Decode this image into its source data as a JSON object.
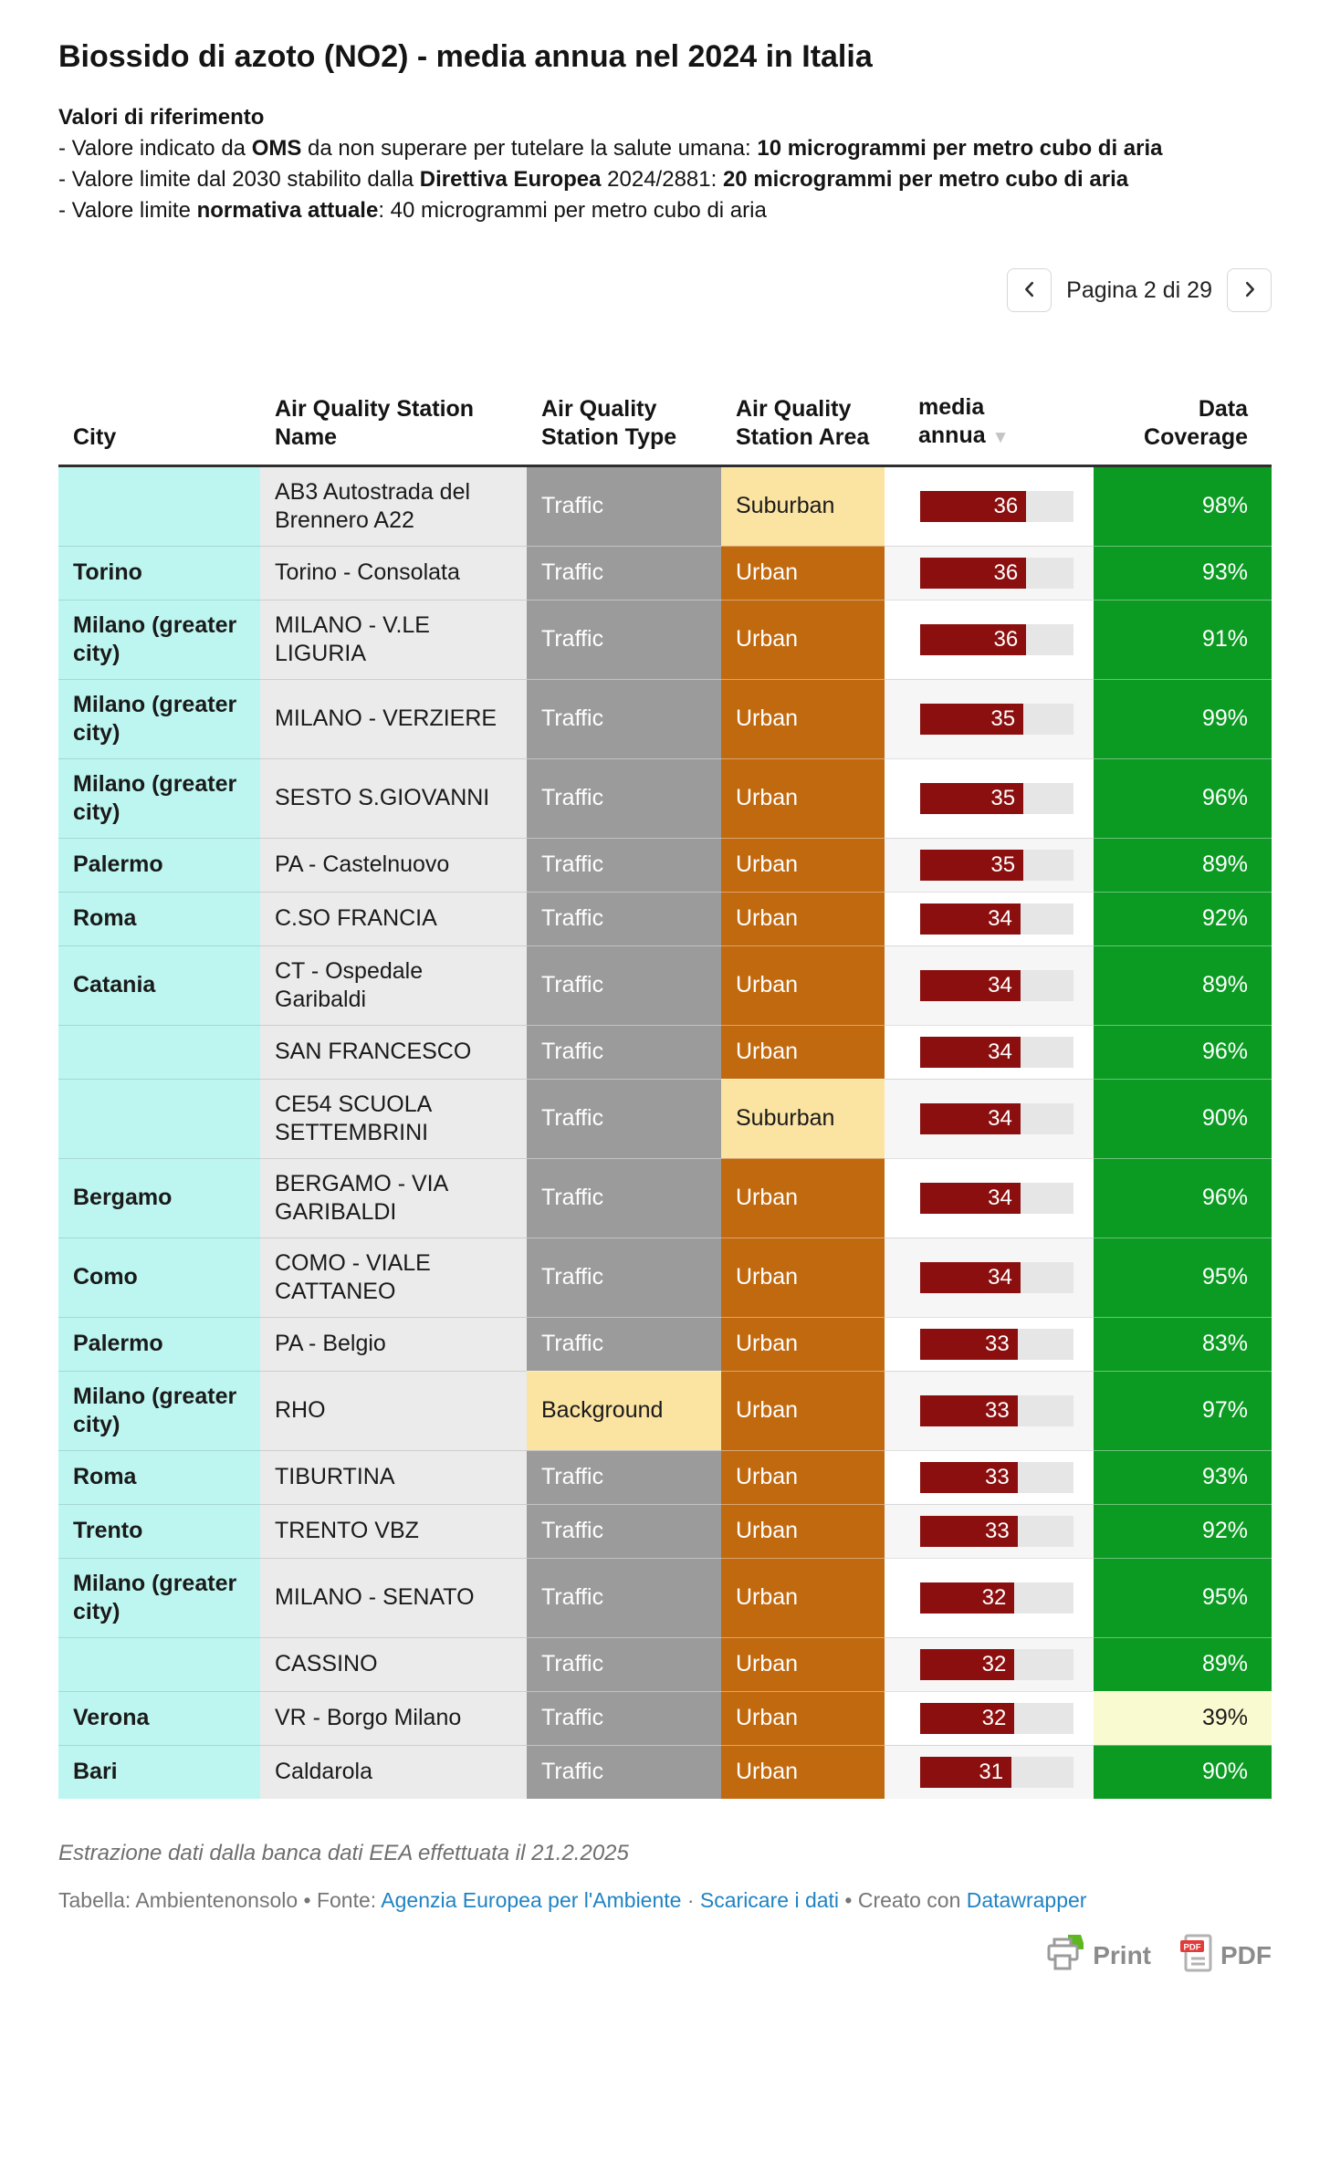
{
  "header": {
    "title": "Biossido di azoto (NO2) - media annua nel 2024 in Italia",
    "reference_heading": "Valori di riferimento",
    "reference_lines": [
      [
        {
          "t": "- Valore indicato da "
        },
        {
          "t": "OMS",
          "b": true
        },
        {
          "t": " da non superare per tutelare la salute umana: "
        },
        {
          "t": "10 microgrammi per metro cubo di aria",
          "b": true
        }
      ],
      [
        {
          "t": "- Valore limite dal 2030 stabilito dalla "
        },
        {
          "t": "Direttiva Europea",
          "b": true
        },
        {
          "t": " 2024/2881: "
        },
        {
          "t": "20 microgrammi per metro cubo di aria",
          "b": true
        }
      ],
      [
        {
          "t": "- Valore limite "
        },
        {
          "t": "normativa attuale",
          "b": true
        },
        {
          "t": ": 40 microgrammi per metro cubo di aria"
        }
      ]
    ]
  },
  "pagination": {
    "label": "Pagina 2 di 29"
  },
  "table": {
    "sort_indicator": "▼",
    "sorted_column": "media annua",
    "sort_direction": "desc"
  },
  "chart_data": {
    "type": "table",
    "title": "Biossido di azoto (NO2) - media annua nel 2024 in Italia",
    "columns": [
      "City",
      "Air Quality Station Name",
      "Air Quality Station Type",
      "Air Quality Station Area",
      "media annua",
      "Data Coverage"
    ],
    "bar_max": 52,
    "rows": [
      {
        "city": "",
        "station": "AB3 Autostrada del Brennero A22",
        "type": "Traffic",
        "area": "Suburban",
        "media_annua": 36,
        "data_coverage": "98%"
      },
      {
        "city": "Torino",
        "station": "Torino - Consolata",
        "type": "Traffic",
        "area": "Urban",
        "media_annua": 36,
        "data_coverage": "93%"
      },
      {
        "city": "Milano (greater city)",
        "station": "MILANO - V.LE LIGURIA",
        "type": "Traffic",
        "area": "Urban",
        "media_annua": 36,
        "data_coverage": "91%"
      },
      {
        "city": "Milano (greater city)",
        "station": "MILANO - VERZIERE",
        "type": "Traffic",
        "area": "Urban",
        "media_annua": 35,
        "data_coverage": "99%"
      },
      {
        "city": "Milano (greater city)",
        "station": "SESTO S.GIOVANNI",
        "type": "Traffic",
        "area": "Urban",
        "media_annua": 35,
        "data_coverage": "96%"
      },
      {
        "city": "Palermo",
        "station": "PA - Castelnuovo",
        "type": "Traffic",
        "area": "Urban",
        "media_annua": 35,
        "data_coverage": "89%"
      },
      {
        "city": "Roma",
        "station": "C.SO FRANCIA",
        "type": "Traffic",
        "area": "Urban",
        "media_annua": 34,
        "data_coverage": "92%"
      },
      {
        "city": "Catania",
        "station": "CT - Ospedale Garibaldi",
        "type": "Traffic",
        "area": "Urban",
        "media_annua": 34,
        "data_coverage": "89%"
      },
      {
        "city": "",
        "station": "SAN FRANCESCO",
        "type": "Traffic",
        "area": "Urban",
        "media_annua": 34,
        "data_coverage": "96%"
      },
      {
        "city": "",
        "station": "CE54 SCUOLA SETTEMBRINI",
        "type": "Traffic",
        "area": "Suburban",
        "media_annua": 34,
        "data_coverage": "90%"
      },
      {
        "city": "Bergamo",
        "station": "BERGAMO - VIA GARIBALDI",
        "type": "Traffic",
        "area": "Urban",
        "media_annua": 34,
        "data_coverage": "96%"
      },
      {
        "city": "Como",
        "station": "COMO - VIALE CATTANEO",
        "type": "Traffic",
        "area": "Urban",
        "media_annua": 34,
        "data_coverage": "95%"
      },
      {
        "city": "Palermo",
        "station": "PA - Belgio",
        "type": "Traffic",
        "area": "Urban",
        "media_annua": 33,
        "data_coverage": "83%"
      },
      {
        "city": "Milano (greater city)",
        "station": "RHO",
        "type": "Background",
        "area": "Urban",
        "media_annua": 33,
        "data_coverage": "97%"
      },
      {
        "city": "Roma",
        "station": "TIBURTINA",
        "type": "Traffic",
        "area": "Urban",
        "media_annua": 33,
        "data_coverage": "93%"
      },
      {
        "city": "Trento",
        "station": "TRENTO VBZ",
        "type": "Traffic",
        "area": "Urban",
        "media_annua": 33,
        "data_coverage": "92%"
      },
      {
        "city": "Milano (greater city)",
        "station": "MILANO - SENATO",
        "type": "Traffic",
        "area": "Urban",
        "media_annua": 32,
        "data_coverage": "95%"
      },
      {
        "city": "",
        "station": "CASSINO",
        "type": "Traffic",
        "area": "Urban",
        "media_annua": 32,
        "data_coverage": "89%"
      },
      {
        "city": "Verona",
        "station": "VR - Borgo Milano",
        "type": "Traffic",
        "area": "Urban",
        "media_annua": 32,
        "data_coverage": "39%",
        "coverage_low": true
      },
      {
        "city": "Bari",
        "station": "Caldarola",
        "type": "Traffic",
        "area": "Urban",
        "media_annua": 31,
        "data_coverage": "90%"
      }
    ]
  },
  "footer": {
    "note": "Estrazione dati dalla banca dati EEA effettuata il 21.2.2025",
    "credits": [
      {
        "t": "Tabella: Ambientenonsolo • Fonte: "
      },
      {
        "t": "Agenzia Europea per l'Ambiente",
        "link": true
      },
      {
        "t": " · "
      },
      {
        "t": "Scaricare i dati",
        "link": true
      },
      {
        "t": " • Creato con "
      },
      {
        "t": "Datawrapper",
        "link": true
      }
    ],
    "print_label": "Print",
    "pdf_label": "PDF"
  },
  "colors": {
    "city_bg": "#bdf6f0",
    "station_bg": "#ebebeb",
    "traffic_bg": "#9b9b9b",
    "type_background_bg": "#fbe3a2",
    "urban_bg": "#c1690f",
    "suburban_bg": "#fbe3a2",
    "bar_fill": "#8b0f0f",
    "bar_track": "#e6e6e6",
    "coverage_bg": "#0b9b22",
    "coverage_low_bg": "#fafad0",
    "link": "#1f83c4"
  }
}
